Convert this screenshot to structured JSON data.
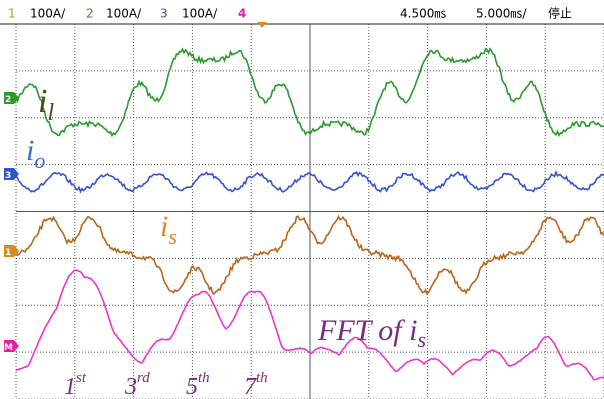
{
  "header": {
    "ch1": "1",
    "ch1_scale": "100A/",
    "ch2": "2",
    "ch2_scale": "100A/",
    "ch3": "3",
    "ch3_scale": "100A/",
    "ch4": "4",
    "delay": "4.500㎳",
    "timebase": "5.000㎳/",
    "status": "停止"
  },
  "traces": [
    {
      "main": "i",
      "sub": "l"
    },
    {
      "main": "i",
      "sub": "o"
    },
    {
      "main": "i",
      "sub": "s"
    }
  ],
  "fft_label": {
    "main": "FFT of i",
    "sub": "s"
  },
  "harmonics": [
    {
      "num": "1",
      "sup": "st"
    },
    {
      "num": "3",
      "sup": "rd"
    },
    {
      "num": "5",
      "sup": "th"
    },
    {
      "num": "7",
      "sup": "th"
    }
  ]
}
